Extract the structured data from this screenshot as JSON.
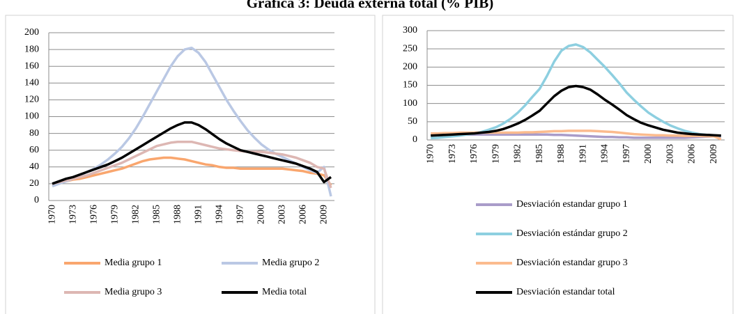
{
  "title": "Gráfica 3: Deuda externa total (% PIB)",
  "chart_data": [
    {
      "type": "line",
      "categories": [
        "1970",
        null,
        null,
        "1973",
        null,
        null,
        "1976",
        null,
        null,
        "1979",
        null,
        null,
        "1982",
        null,
        null,
        "1985",
        null,
        null,
        "1988",
        null,
        null,
        "1991",
        null,
        null,
        "1994",
        null,
        null,
        "1997",
        null,
        null,
        "2000",
        null,
        null,
        "2003",
        null,
        null,
        "2006",
        null,
        null,
        "2009",
        null
      ],
      "ylim": [
        0,
        200
      ],
      "yticks": [
        0,
        20,
        40,
        60,
        80,
        100,
        120,
        140,
        160,
        180,
        200
      ],
      "grid": true,
      "series": [
        {
          "name": "Media grupo 1",
          "color": "#f9a66e",
          "values": [
            20,
            21,
            23,
            25,
            26,
            28,
            30,
            32,
            34,
            36,
            38,
            41,
            44,
            47,
            49,
            50,
            51,
            51,
            50,
            49,
            47,
            45,
            43,
            42,
            40,
            39,
            39,
            38,
            38,
            38,
            38,
            38,
            38,
            38,
            37,
            36,
            35,
            33,
            32,
            30,
            18
          ]
        },
        {
          "name": "Media grupo 2",
          "color": "#bac8e4",
          "values": [
            17,
            20,
            23,
            26,
            30,
            34,
            38,
            43,
            49,
            56,
            64,
            74,
            86,
            100,
            115,
            130,
            145,
            160,
            172,
            180,
            182,
            176,
            165,
            150,
            135,
            120,
            107,
            95,
            84,
            75,
            67,
            61,
            56,
            52,
            48,
            44,
            40,
            36,
            33,
            40,
            5
          ]
        },
        {
          "name": "Media grupo 3",
          "color": "#ddb7b3",
          "values": [
            20,
            22,
            24,
            26,
            28,
            30,
            33,
            36,
            39,
            42,
            45,
            49,
            53,
            57,
            61,
            65,
            67,
            69,
            70,
            70,
            70,
            68,
            66,
            64,
            62,
            61,
            60,
            59,
            58,
            58,
            58,
            57,
            56,
            55,
            53,
            51,
            48,
            45,
            40,
            38,
            15
          ]
        },
        {
          "name": "Media total",
          "color": "#000000",
          "values": [
            20,
            23,
            26,
            28,
            31,
            34,
            37,
            40,
            43,
            47,
            51,
            56,
            61,
            66,
            71,
            76,
            81,
            86,
            90,
            93,
            93,
            90,
            85,
            79,
            73,
            68,
            64,
            60,
            58,
            56,
            54,
            52,
            50,
            48,
            46,
            44,
            41,
            38,
            34,
            22,
            28
          ]
        }
      ]
    },
    {
      "type": "line",
      "categories": [
        "1970",
        null,
        null,
        "1973",
        null,
        null,
        "1976",
        null,
        null,
        "1979",
        null,
        null,
        "1982",
        null,
        null,
        "1985",
        null,
        null,
        "1988",
        null,
        null,
        "1991",
        null,
        null,
        "1994",
        null,
        null,
        "1997",
        null,
        null,
        "2000",
        null,
        null,
        "2003",
        null,
        null,
        "2006",
        null,
        null,
        "2009",
        null
      ],
      "ylim": [
        0,
        300
      ],
      "yticks": [
        0,
        50,
        100,
        150,
        200,
        250,
        300
      ],
      "grid": true,
      "series": [
        {
          "name": "Desviación estandar grupo 1",
          "color": "#a99cc9",
          "values": [
            15,
            15,
            15,
            15,
            15,
            15,
            15,
            15,
            15,
            15,
            15,
            15,
            15,
            15,
            15,
            15,
            15,
            14,
            14,
            13,
            12,
            11,
            10,
            9,
            8,
            8,
            7,
            7,
            6,
            6,
            6,
            6,
            6,
            6,
            6,
            6,
            7,
            8,
            9,
            10,
            10
          ]
        },
        {
          "name": "Desviación estándar grupo 2",
          "color": "#8dcfe0",
          "values": [
            5,
            6,
            8,
            10,
            12,
            15,
            18,
            22,
            28,
            35,
            45,
            58,
            75,
            95,
            118,
            140,
            175,
            215,
            245,
            258,
            262,
            255,
            240,
            220,
            200,
            178,
            155,
            130,
            110,
            92,
            75,
            62,
            50,
            40,
            32,
            25,
            20,
            16,
            14,
            12,
            12
          ]
        },
        {
          "name": "Desviación estandar grupo 3",
          "color": "#fbbb8e",
          "values": [
            18,
            18,
            19,
            19,
            20,
            20,
            20,
            20,
            20,
            20,
            20,
            20,
            20,
            21,
            21,
            22,
            23,
            24,
            24,
            25,
            25,
            25,
            25,
            24,
            23,
            22,
            20,
            18,
            16,
            15,
            14,
            13,
            13,
            12,
            12,
            11,
            11,
            11,
            10,
            10,
            2
          ]
        },
        {
          "name": "Desviación estandar total",
          "color": "#000000",
          "values": [
            12,
            13,
            14,
            15,
            16,
            17,
            18,
            20,
            22,
            25,
            30,
            37,
            45,
            55,
            67,
            80,
            100,
            120,
            135,
            145,
            148,
            145,
            138,
            125,
            110,
            97,
            83,
            68,
            57,
            47,
            40,
            34,
            28,
            24,
            20,
            18,
            16,
            15,
            14,
            13,
            12
          ]
        }
      ]
    }
  ]
}
